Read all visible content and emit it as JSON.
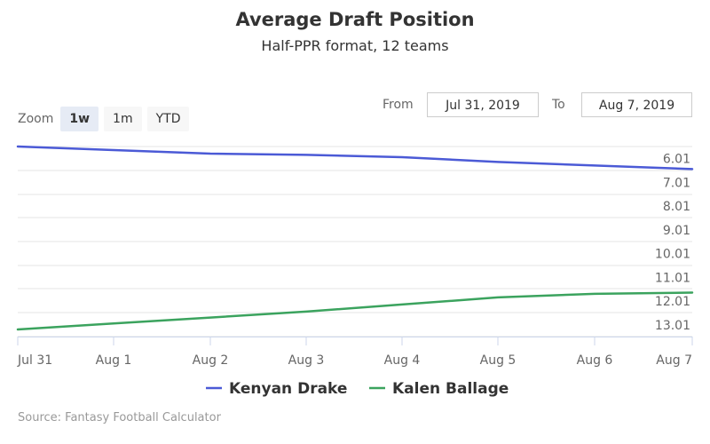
{
  "header": {
    "title": "Average Draft Position",
    "subtitle": "Half-PPR format, 12 teams"
  },
  "zoom": {
    "label": "Zoom",
    "buttons": [
      {
        "label": "1w",
        "active": true
      },
      {
        "label": "1m",
        "active": false
      },
      {
        "label": "YTD",
        "active": false
      }
    ]
  },
  "range": {
    "from_label": "From",
    "from_value": "Jul 31, 2019",
    "to_label": "To",
    "to_value": "Aug 7, 2019"
  },
  "source": "Source: Fantasy Football Calculator",
  "colors": {
    "kenyan_drake": "#4b5ad6",
    "kalen_ballage": "#3ba35e"
  },
  "chart_data": {
    "type": "line",
    "title": "Average Draft Position",
    "subtitle": "Half-PPR format, 12 teams",
    "x": [
      "Jul 31",
      "Aug 1",
      "Aug 2",
      "Aug 3",
      "Aug 4",
      "Aug 5",
      "Aug 6",
      "Aug 7"
    ],
    "y_ticks": [
      "6.01",
      "7.01",
      "8.01",
      "9.01",
      "10.01",
      "11.01",
      "12.01",
      "13.01"
    ],
    "ylim": [
      5.5,
      13.5
    ],
    "y_reversed": true,
    "grid": true,
    "legend_position": "bottom-center",
    "series": [
      {
        "name": "Kenyan Drake",
        "values": [
          5.5,
          5.65,
          5.8,
          5.85,
          5.95,
          6.15,
          6.3,
          6.45
        ]
      },
      {
        "name": "Kalen Ballage",
        "values": [
          13.2,
          12.95,
          12.7,
          12.45,
          12.15,
          11.85,
          11.7,
          11.65
        ]
      }
    ]
  }
}
